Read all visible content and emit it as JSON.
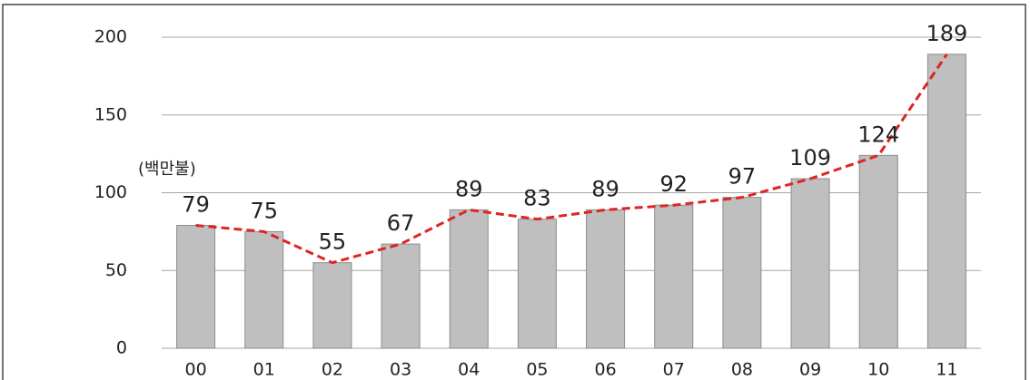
{
  "chart_data": {
    "type": "bar",
    "annotation": "(백만불)",
    "categories": [
      "00",
      "01",
      "02",
      "03",
      "04",
      "05",
      "06",
      "07",
      "08",
      "09",
      "10",
      "11"
    ],
    "values": [
      79,
      75,
      55,
      67,
      89,
      83,
      89,
      92,
      97,
      109,
      124,
      189
    ],
    "color": "#bfbfbf",
    "line_color": "#e02424",
    "line_dashed": true,
    "ylim": [
      0,
      200
    ],
    "yticks": [
      0,
      50,
      100,
      150,
      200
    ],
    "grid": true
  }
}
